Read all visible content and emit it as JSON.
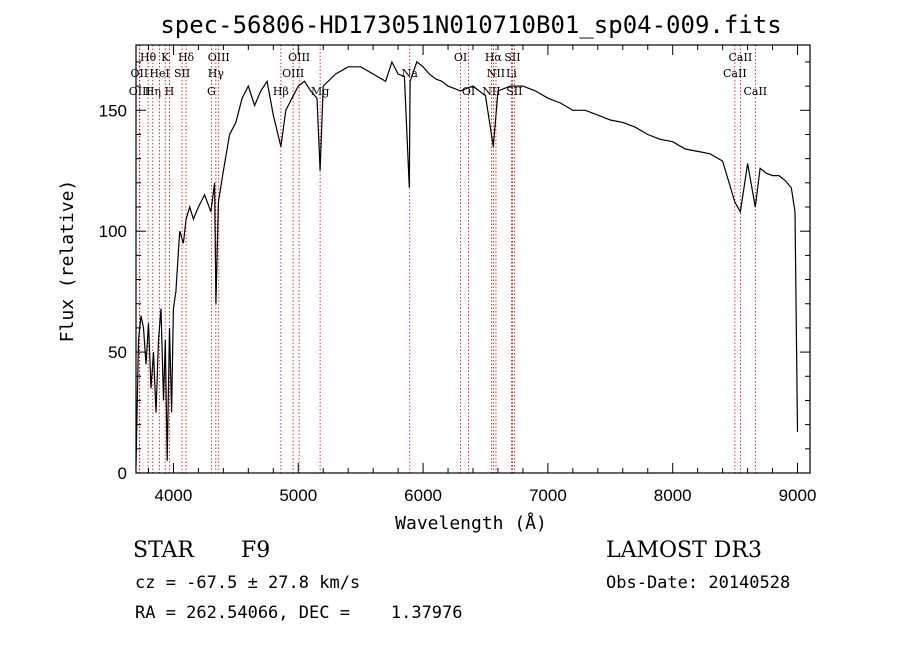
{
  "chart_data": {
    "type": "line",
    "title": "spec-56806-HD173051N010710B01_sp04-009.fits",
    "xlabel": "Wavelength (Å)",
    "ylabel": "Flux (relative)",
    "xlim": [
      3700,
      9100
    ],
    "ylim": [
      0,
      177
    ],
    "xticks": [
      4000,
      5000,
      6000,
      7000,
      8000,
      9000
    ],
    "yticks": [
      0,
      50,
      100,
      150
    ],
    "series": [
      {
        "x": [
          3700,
          3720,
          3740,
          3760,
          3780,
          3800,
          3820,
          3840,
          3860,
          3880,
          3900,
          3920,
          3935,
          3950,
          3968,
          3985,
          4000,
          4020,
          4050,
          4080,
          4101,
          4130,
          4160,
          4200,
          4250,
          4300,
          4330,
          4340,
          4360,
          4400,
          4450,
          4500,
          4550,
          4600,
          4650,
          4700,
          4750,
          4800,
          4861,
          4900,
          4950,
          5000,
          5050,
          5100,
          5150,
          5175,
          5200,
          5300,
          5400,
          5500,
          5600,
          5700,
          5750,
          5800,
          5850,
          5890,
          5896,
          5950,
          6000,
          6050,
          6100,
          6150,
          6200,
          6300,
          6400,
          6500,
          6563,
          6600,
          6700,
          6800,
          6900,
          7000,
          7100,
          7200,
          7300,
          7400,
          7500,
          7600,
          7700,
          7800,
          7900,
          8000,
          8100,
          8200,
          8300,
          8400,
          8498,
          8542,
          8600,
          8662,
          8700,
          8750,
          8800,
          8850,
          8900,
          8950,
          8980,
          9000
        ],
        "y": [
          3,
          55,
          65,
          60,
          45,
          62,
          35,
          50,
          25,
          55,
          68,
          30,
          55,
          5,
          60,
          25,
          68,
          75,
          100,
          95,
          105,
          110,
          105,
          110,
          115,
          108,
          120,
          70,
          112,
          125,
          140,
          145,
          155,
          160,
          152,
          158,
          162,
          148,
          135,
          150,
          155,
          160,
          162,
          158,
          155,
          125,
          160,
          165,
          168,
          168,
          165,
          162,
          170,
          165,
          164,
          118,
          162,
          170,
          168,
          165,
          163,
          162,
          160,
          158,
          160,
          156,
          135,
          158,
          160,
          160,
          158,
          155,
          153,
          150,
          150,
          148,
          146,
          145,
          143,
          140,
          138,
          137,
          134,
          133,
          132,
          129,
          112,
          108,
          128,
          110,
          126,
          124,
          123,
          123,
          121,
          118,
          108,
          17
        ]
      }
    ]
  },
  "lines": [
    {
      "label": "Hθ",
      "x": 3797,
      "row": 0
    },
    {
      "label": "OII",
      "x": 3727,
      "row": 1
    },
    {
      "label": "OIII",
      "x": 3730,
      "row": 2
    },
    {
      "label": "K",
      "x": 3934,
      "row": 0
    },
    {
      "label": "HeI",
      "x": 3889,
      "row": 1
    },
    {
      "label": "Hη",
      "x": 3835,
      "row": 2
    },
    {
      "label": "Hδ",
      "x": 4101,
      "row": 0
    },
    {
      "label": "SII",
      "x": 4069,
      "row": 1
    },
    {
      "label": "H",
      "x": 3968,
      "row": 2
    },
    {
      "label": "OIII",
      "x": 4363,
      "row": 0
    },
    {
      "label": "Hγ",
      "x": 4340,
      "row": 1
    },
    {
      "label": "G",
      "x": 4304,
      "row": 2
    },
    {
      "label": "OIII",
      "x": 5007,
      "row": 0
    },
    {
      "label": "OIII",
      "x": 4959,
      "row": 1
    },
    {
      "label": "Hβ",
      "x": 4861,
      "row": 2
    },
    {
      "label": "Mg",
      "x": 5175,
      "row": 2
    },
    {
      "label": "Na",
      "x": 5893,
      "row": 1
    },
    {
      "label": "OI",
      "x": 6300,
      "row": 0
    },
    {
      "label": "OI",
      "x": 6364,
      "row": 2
    },
    {
      "label": "Hα",
      "x": 6563,
      "row": 0
    },
    {
      "label": "SII",
      "x": 6716,
      "row": 0
    },
    {
      "label": "NII",
      "x": 6584,
      "row": 1
    },
    {
      "label": "Li",
      "x": 6708,
      "row": 1
    },
    {
      "label": "NII",
      "x": 6548,
      "row": 2
    },
    {
      "label": "SII",
      "x": 6731,
      "row": 2
    },
    {
      "label": "CaII",
      "x": 8542,
      "row": 0
    },
    {
      "label": "CaII",
      "x": 8498,
      "row": 1
    },
    {
      "label": "CaII",
      "x": 8662,
      "row": 2
    }
  ],
  "info": {
    "object_class": "STAR",
    "subclass": "F9",
    "survey": "LAMOST DR3",
    "redshift": "cz = -67.5 ± 27.8 km/s",
    "obs_date": "Obs-Date: 20140528",
    "coords": "RA = 262.54066, DEC =    1.37976"
  },
  "colors": {
    "spectrum": "#000000",
    "line_markers": "#cc0000",
    "axes": "#000000"
  }
}
